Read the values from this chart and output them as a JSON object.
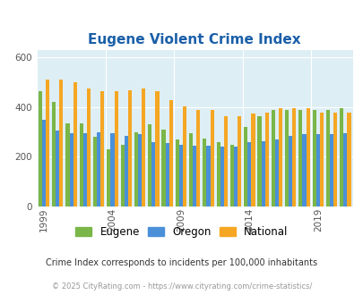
{
  "title": "Eugene Violent Crime Index",
  "years": [
    1999,
    2000,
    2001,
    2002,
    2003,
    2004,
    2005,
    2006,
    2007,
    2008,
    2009,
    2010,
    2011,
    2012,
    2013,
    2014,
    2015,
    2016,
    2017,
    2018,
    2019,
    2020,
    2021
  ],
  "eugene": [
    465,
    420,
    335,
    335,
    280,
    230,
    250,
    300,
    330,
    310,
    270,
    295,
    275,
    260,
    250,
    320,
    365,
    390,
    390,
    390,
    390,
    390,
    395
  ],
  "oregon": [
    350,
    305,
    295,
    295,
    300,
    295,
    285,
    290,
    260,
    255,
    250,
    245,
    245,
    240,
    240,
    258,
    262,
    270,
    285,
    290,
    290,
    290,
    295
  ],
  "national": [
    510,
    510,
    500,
    475,
    465,
    465,
    470,
    475,
    465,
    430,
    405,
    390,
    390,
    365,
    365,
    375,
    380,
    395,
    395,
    395,
    380,
    380,
    380
  ],
  "eugene_color": "#7ab648",
  "oregon_color": "#4a90d9",
  "national_color": "#f5a623",
  "bg_color": "#deeef5",
  "yticks": [
    0,
    200,
    400,
    600
  ],
  "xticks": [
    1999,
    2004,
    2009,
    2014,
    2019
  ],
  "ylim": [
    0,
    630
  ],
  "tick_fontsize": 7.5,
  "title_fontsize": 11,
  "legend_fontsize": 8.5,
  "footnote1": "Crime Index corresponds to incidents per 100,000 inhabitants",
  "footnote2": "© 2025 CityRating.com - https://www.cityrating.com/crime-statistics/",
  "bar_width": 0.27
}
